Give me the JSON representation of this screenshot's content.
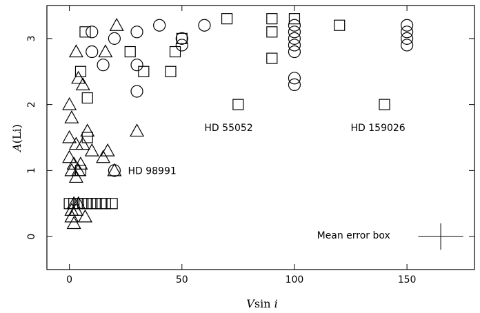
{
  "chart_data": {
    "type": "scatter",
    "title": "",
    "xlabel": "Vsin i",
    "xlabel_parts": {
      "v": "V",
      "sin": "sin ",
      "i": "i"
    },
    "ylabel": "A(Li)",
    "ylabel_parts": {
      "a": "A",
      "li": "(Li)"
    },
    "xlim": [
      -10,
      180
    ],
    "ylim": [
      -0.5,
      3.5
    ],
    "xticks": [
      0,
      50,
      100,
      150
    ],
    "xtick_labels": [
      "0",
      "50",
      "100",
      "150"
    ],
    "yticks": [
      0,
      1,
      2,
      3
    ],
    "ytick_labels": [
      "0",
      "1",
      "2",
      "3"
    ],
    "grid": false,
    "series": [
      {
        "marker": "triangle",
        "points": [
          [
            21,
            3.2
          ],
          [
            3,
            2.8
          ],
          [
            16,
            2.8
          ],
          [
            4,
            2.4
          ],
          [
            6,
            2.3
          ],
          [
            0,
            2.0
          ],
          [
            30,
            1.6
          ],
          [
            1,
            1.8
          ],
          [
            8,
            1.6
          ],
          [
            0,
            1.5
          ],
          [
            3,
            1.4
          ],
          [
            6,
            1.4
          ],
          [
            10,
            1.3
          ],
          [
            17,
            1.3
          ],
          [
            15,
            1.2
          ],
          [
            0,
            1.2
          ],
          [
            2,
            1.1
          ],
          [
            5,
            1.1
          ],
          [
            1,
            1.0
          ],
          [
            4,
            1.0
          ],
          [
            3,
            0.9
          ],
          [
            20,
            1.0
          ],
          [
            2,
            0.5
          ],
          [
            4,
            0.5
          ],
          [
            1,
            0.4
          ],
          [
            3,
            0.4
          ],
          [
            7,
            0.3
          ],
          [
            1,
            0.3
          ],
          [
            2,
            0.2
          ]
        ]
      },
      {
        "marker": "square",
        "points": [
          [
            7,
            3.1
          ],
          [
            27,
            2.8
          ],
          [
            5,
            2.5
          ],
          [
            45,
            2.5
          ],
          [
            8,
            2.1
          ],
          [
            33,
            2.5
          ],
          [
            47,
            2.8
          ],
          [
            50,
            3.0
          ],
          [
            70,
            3.3
          ],
          [
            90,
            3.3
          ],
          [
            90,
            3.1
          ],
          [
            100,
            3.3
          ],
          [
            120,
            3.2
          ],
          [
            90,
            2.7
          ],
          [
            75,
            2.0
          ],
          [
            140,
            2.0
          ],
          [
            8,
            1.5
          ],
          [
            5,
            1.0
          ],
          [
            0,
            0.5
          ],
          [
            2,
            0.5
          ],
          [
            4,
            0.5
          ],
          [
            6,
            0.5
          ],
          [
            8,
            0.5
          ],
          [
            10,
            0.5
          ],
          [
            12,
            0.5
          ],
          [
            14,
            0.5
          ],
          [
            16,
            0.5
          ],
          [
            19,
            0.5
          ]
        ]
      },
      {
        "marker": "circle",
        "points": [
          [
            10,
            3.1
          ],
          [
            20,
            3.0
          ],
          [
            30,
            3.1
          ],
          [
            40,
            3.2
          ],
          [
            50,
            3.0
          ],
          [
            50,
            2.9
          ],
          [
            60,
            3.2
          ],
          [
            10,
            2.8
          ],
          [
            15,
            2.6
          ],
          [
            30,
            2.6
          ],
          [
            30,
            2.2
          ],
          [
            100,
            3.2
          ],
          [
            100,
            3.1
          ],
          [
            100,
            3.0
          ],
          [
            100,
            2.9
          ],
          [
            100,
            2.8
          ],
          [
            100,
            2.4
          ],
          [
            100,
            2.3
          ],
          [
            150,
            3.2
          ],
          [
            150,
            3.1
          ],
          [
            150,
            3.0
          ],
          [
            150,
            2.9
          ],
          [
            20,
            1.0
          ]
        ]
      }
    ],
    "annotations": [
      {
        "text": "HD 98991",
        "x": 26,
        "y": 1.0
      },
      {
        "text": "HD 55052",
        "x": 60,
        "y": 1.65
      },
      {
        "text": "HD 159026",
        "x": 125,
        "y": 1.65
      },
      {
        "text": "Mean error box",
        "x": 110,
        "y": 0.02
      }
    ],
    "error_box": {
      "label": "Mean error box",
      "x": 165,
      "y": 0,
      "xerr": 10,
      "yerr": 0.2
    }
  }
}
